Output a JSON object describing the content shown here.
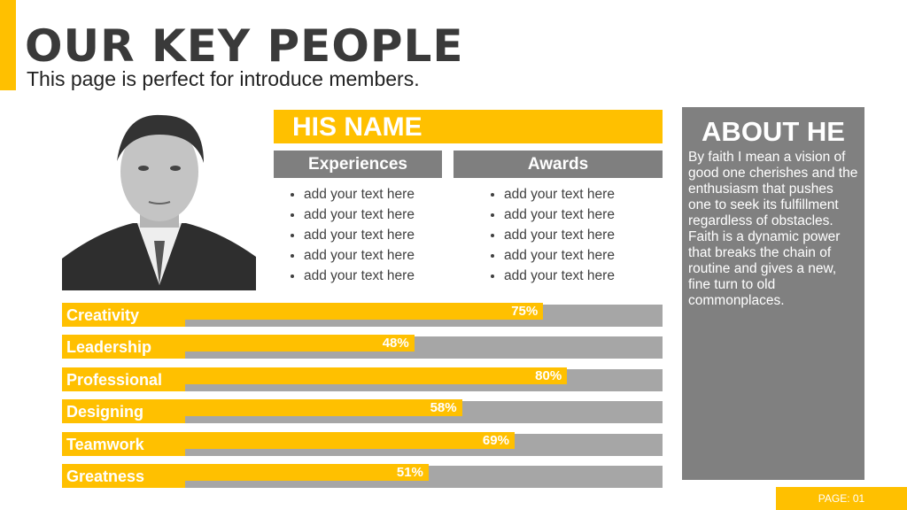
{
  "header": {
    "title": "OUR KEY PEOPLE",
    "subtitle": "This page is perfect for introduce members."
  },
  "profile": {
    "name": "HIS NAME",
    "experiences": {
      "heading": "Experiences",
      "items": [
        "add your text here",
        "add your text here",
        "add your text here",
        "add your text here",
        "add your text here"
      ]
    },
    "awards": {
      "heading": "Awards",
      "items": [
        "add your text here",
        "add your text here",
        "add your text here",
        "add your text here",
        "add your text here"
      ]
    }
  },
  "about": {
    "heading": "ABOUT HE",
    "text": "By faith I mean a vision of good one cherishes and the enthusiasm that pushes one to seek its fulfillment regardless of obstacles. Faith is a dynamic power that breaks the chain of routine and gives a new, fine turn to old commonplaces."
  },
  "skills": {
    "names": [
      "Creativity",
      "Leadership",
      "Professional",
      "Designing",
      "Teamwork",
      "Greatness"
    ],
    "values": [
      75,
      48,
      80,
      58,
      69,
      51
    ],
    "value_labels": [
      "75%",
      "48%",
      "80%",
      "58%",
      "69%",
      "51%"
    ]
  },
  "footer": {
    "page": "PAGE: 01"
  }
}
